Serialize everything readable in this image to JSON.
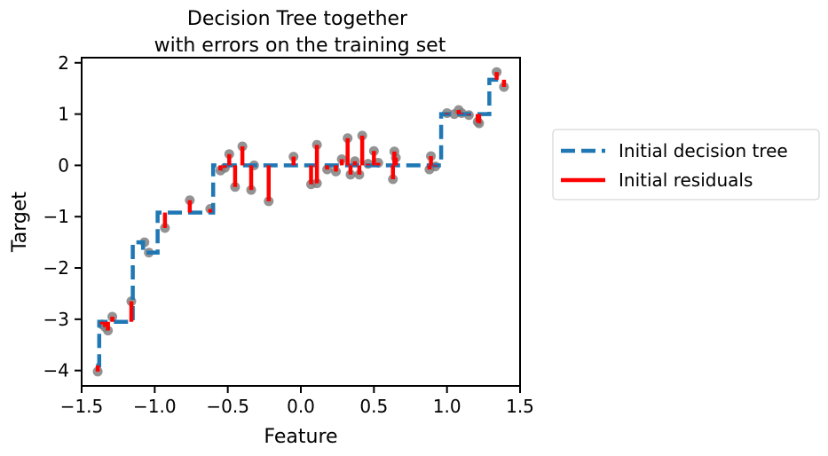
{
  "chart_data": {
    "type": "scatter",
    "title": [
      "Decision Tree together",
      "with errors on the training set"
    ],
    "xlabel": "Feature",
    "ylabel": "Target",
    "xlim": [
      -1.5,
      1.5
    ],
    "ylim": [
      -4.3,
      2.1
    ],
    "xticks": [
      -1.5,
      -1.0,
      -0.5,
      0.0,
      0.5,
      1.0,
      1.5
    ],
    "xtick_labels": [
      "−1.5",
      "−1.0",
      "−0.5",
      "0.0",
      "0.5",
      "1.0",
      "1.5"
    ],
    "yticks": [
      -4,
      -3,
      -2,
      -1,
      0,
      1,
      2
    ],
    "ytick_labels": [
      "−4",
      "−3",
      "−2",
      "−1",
      "0",
      "1",
      "2"
    ],
    "grid": false,
    "legend": {
      "placement": "outside-right",
      "entries": [
        "Initial decision tree",
        "Initial residuals"
      ]
    },
    "colors": {
      "tree": "#1f77b4",
      "residual": "#ff0000",
      "points": "#808080"
    },
    "tree_steps": [
      [
        -1.4,
        -3.9
      ],
      [
        -1.38,
        -3.9
      ],
      [
        -1.38,
        -3.05
      ],
      [
        -1.15,
        -3.05
      ],
      [
        -1.15,
        -1.5
      ],
      [
        -1.08,
        -1.5
      ],
      [
        -1.08,
        -1.7
      ],
      [
        -0.98,
        -1.7
      ],
      [
        -0.98,
        -0.92
      ],
      [
        -0.6,
        -0.92
      ],
      [
        -0.6,
        0.0
      ],
      [
        0.96,
        0.0
      ],
      [
        0.96,
        1.0
      ],
      [
        1.29,
        1.0
      ],
      [
        1.29,
        1.67
      ],
      [
        1.39,
        1.67
      ]
    ],
    "points": [
      {
        "x": -1.39,
        "y": -4.02,
        "pred": -3.9
      },
      {
        "x": -1.36,
        "y": -3.1,
        "pred": -3.05
      },
      {
        "x": -1.34,
        "y": -3.15,
        "pred": -3.05
      },
      {
        "x": -1.32,
        "y": -3.22,
        "pred": -3.05
      },
      {
        "x": -1.29,
        "y": -2.95,
        "pred": -3.05
      },
      {
        "x": -1.16,
        "y": -2.65,
        "pred": -3.05
      },
      {
        "x": -1.07,
        "y": -1.5,
        "pred": -1.5
      },
      {
        "x": -1.04,
        "y": -1.7,
        "pred": -1.7
      },
      {
        "x": -0.93,
        "y": -1.22,
        "pred": -0.92
      },
      {
        "x": -0.76,
        "y": -0.68,
        "pred": -0.92
      },
      {
        "x": -0.62,
        "y": -0.85,
        "pred": -0.92
      },
      {
        "x": -0.55,
        "y": -0.1,
        "pred": 0.0
      },
      {
        "x": -0.52,
        "y": -0.05,
        "pred": 0.0
      },
      {
        "x": -0.49,
        "y": 0.22,
        "pred": 0.0
      },
      {
        "x": -0.45,
        "y": -0.42,
        "pred": 0.0
      },
      {
        "x": -0.4,
        "y": 0.37,
        "pred": 0.0
      },
      {
        "x": -0.34,
        "y": -0.48,
        "pred": 0.0
      },
      {
        "x": -0.32,
        "y": 0.0,
        "pred": 0.0
      },
      {
        "x": -0.22,
        "y": -0.7,
        "pred": 0.0
      },
      {
        "x": -0.05,
        "y": 0.17,
        "pred": 0.0
      },
      {
        "x": 0.07,
        "y": -0.37,
        "pred": 0.0
      },
      {
        "x": 0.11,
        "y": -0.35,
        "pred": 0.0
      },
      {
        "x": 0.11,
        "y": 0.4,
        "pred": 0.0
      },
      {
        "x": 0.18,
        "y": -0.08,
        "pred": 0.0
      },
      {
        "x": 0.24,
        "y": -0.12,
        "pred": 0.0
      },
      {
        "x": 0.28,
        "y": 0.12,
        "pred": 0.0
      },
      {
        "x": 0.32,
        "y": 0.53,
        "pred": 0.0
      },
      {
        "x": 0.34,
        "y": -0.18,
        "pred": 0.0
      },
      {
        "x": 0.37,
        "y": 0.08,
        "pred": 0.0
      },
      {
        "x": 0.4,
        "y": -0.18,
        "pred": 0.0
      },
      {
        "x": 0.42,
        "y": 0.58,
        "pred": 0.0
      },
      {
        "x": 0.46,
        "y": 0.03,
        "pred": 0.0
      },
      {
        "x": 0.5,
        "y": 0.28,
        "pred": 0.0
      },
      {
        "x": 0.53,
        "y": 0.05,
        "pred": 0.0
      },
      {
        "x": 0.63,
        "y": -0.27,
        "pred": 0.0
      },
      {
        "x": 0.64,
        "y": 0.27,
        "pred": 0.0
      },
      {
        "x": 0.65,
        "y": 0.15,
        "pred": 0.0
      },
      {
        "x": 0.88,
        "y": -0.08,
        "pred": 0.0
      },
      {
        "x": 0.89,
        "y": 0.18,
        "pred": 0.0
      },
      {
        "x": 0.92,
        "y": -0.02,
        "pred": 0.0
      },
      {
        "x": 1.0,
        "y": 1.02,
        "pred": 1.0
      },
      {
        "x": 1.05,
        "y": 1.0,
        "pred": 1.0
      },
      {
        "x": 1.08,
        "y": 1.08,
        "pred": 1.0
      },
      {
        "x": 1.1,
        "y": 1.02,
        "pred": 1.0
      },
      {
        "x": 1.15,
        "y": 0.98,
        "pred": 1.0
      },
      {
        "x": 1.21,
        "y": 0.85,
        "pred": 1.0
      },
      {
        "x": 1.22,
        "y": 0.82,
        "pred": 1.0
      },
      {
        "x": 1.34,
        "y": 1.82,
        "pred": 1.67
      },
      {
        "x": 1.39,
        "y": 1.53,
        "pred": 1.67
      }
    ]
  }
}
